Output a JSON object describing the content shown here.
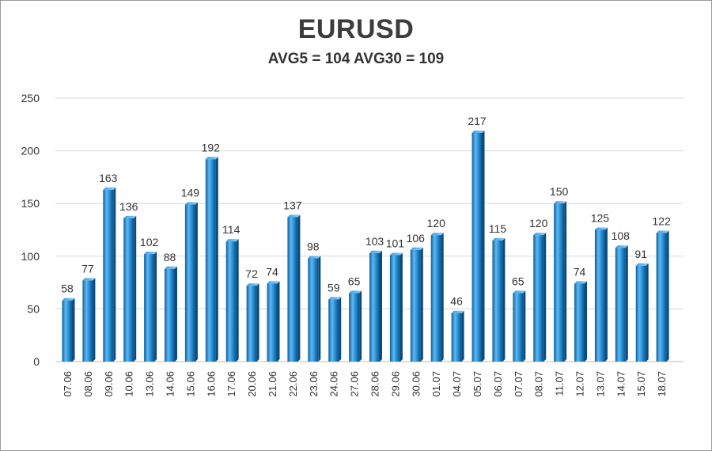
{
  "chart_data": {
    "type": "bar",
    "title": "EURUSD",
    "subtitle": "AVG5 = 104 AVG30 = 109",
    "categories": [
      "07.06",
      "08.06",
      "09.06",
      "10.06",
      "13.06",
      "14.06",
      "15.06",
      "16.06",
      "17.06",
      "20.06",
      "21.06",
      "22.06",
      "23.06",
      "24.06",
      "27.06",
      "28.06",
      "29.06",
      "30.06",
      "01.07",
      "04.07",
      "05.07",
      "06.07",
      "07.07",
      "08.07",
      "11.07",
      "12.07",
      "13.07",
      "14.07",
      "15.07",
      "18.07"
    ],
    "values": [
      58,
      77,
      163,
      136,
      102,
      88,
      149,
      192,
      114,
      72,
      74,
      137,
      98,
      59,
      65,
      103,
      101,
      106,
      120,
      46,
      217,
      115,
      65,
      120,
      150,
      74,
      125,
      108,
      91,
      122
    ],
    "ylim": [
      0,
      250
    ],
    "yticks": [
      0,
      50,
      100,
      150,
      200,
      250
    ],
    "grid": true,
    "bar_color": "#1f8ad6",
    "xlabel": "",
    "ylabel": ""
  }
}
